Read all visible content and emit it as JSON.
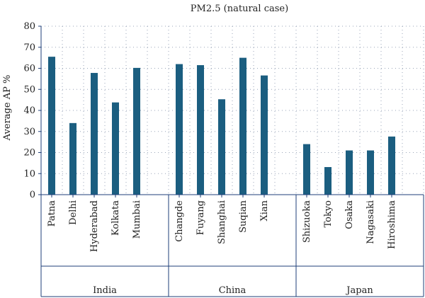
{
  "chart_data": {
    "type": "bar",
    "title": "PM2.5 (natural case)",
    "xlabel": "",
    "ylabel": "Average AP %",
    "ylim": [
      0,
      80
    ],
    "yticks": [
      0,
      10,
      20,
      30,
      40,
      50,
      60,
      70,
      80
    ],
    "grid": "dotted",
    "colors": {
      "bar": "#1b5e80",
      "axis": "#1f3f78"
    },
    "groups": [
      {
        "name": "India",
        "categories": [
          "Patna",
          "Delhi",
          "Hyderabad",
          "Kolkata",
          "Mumbai"
        ],
        "values": [
          65.5,
          34,
          57.8,
          43.8,
          60.2
        ]
      },
      {
        "name": "China",
        "categories": [
          "Changde",
          "Fuyang",
          "Shanghai",
          "Suqian",
          "Xian"
        ],
        "values": [
          62,
          61.5,
          45.3,
          65,
          56.6
        ]
      },
      {
        "name": "Japan",
        "categories": [
          "Shizuoka",
          "Tokyo",
          "Osaka",
          "Nagasaki",
          "Hiroshima"
        ],
        "values": [
          24,
          13.1,
          21,
          21,
          27.6
        ]
      }
    ]
  }
}
